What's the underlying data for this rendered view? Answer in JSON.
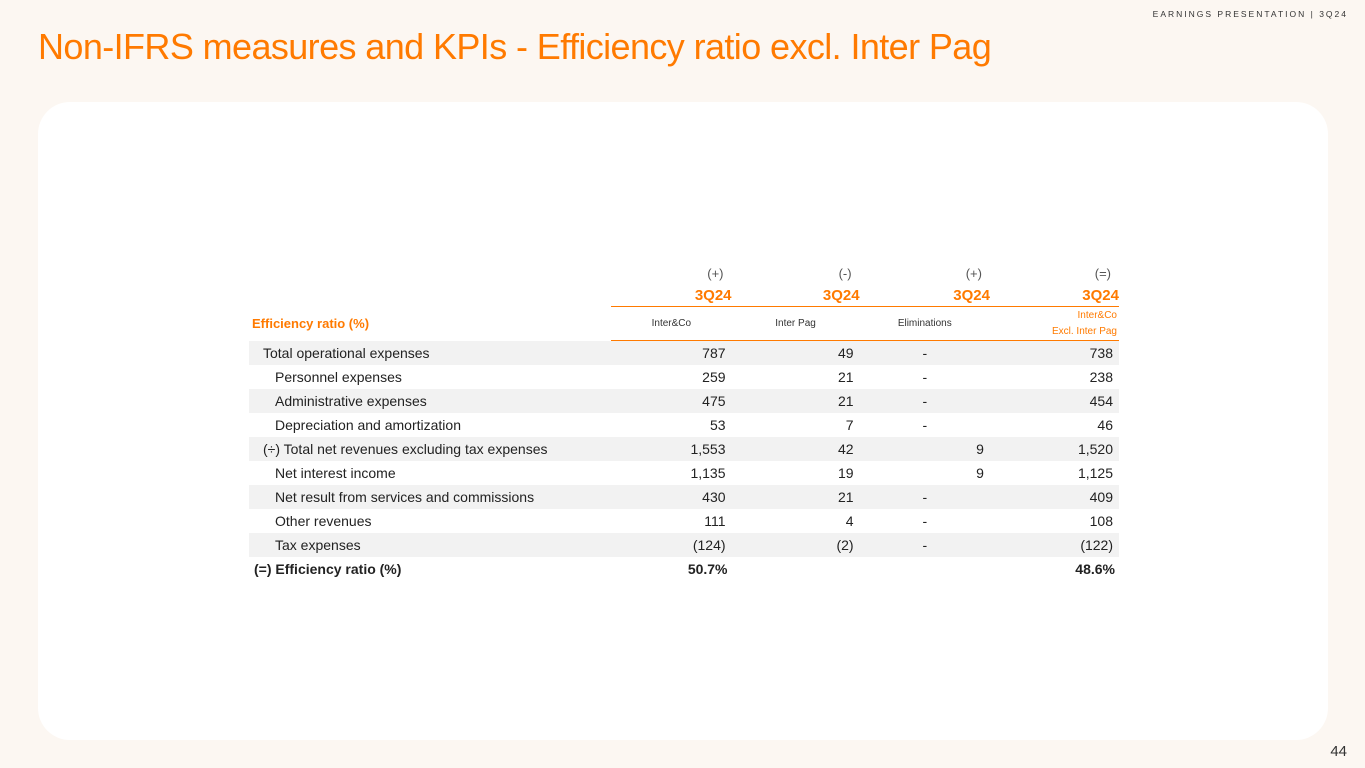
{
  "header": {
    "tag": "EARNINGS PRESENTATION | 3Q24"
  },
  "title": "Non-IFRS measures and KPIs - Efficiency ratio excl. Inter Pag",
  "page_number": "44",
  "colors": {
    "accent": "#ff7a00",
    "background": "#fcf7f2",
    "card": "#ffffff",
    "row_shade": "#f2f2f2"
  },
  "table": {
    "label": "Efficiency ratio (%)",
    "columns": [
      {
        "sign": "(+)",
        "period": "3Q24",
        "entity": "Inter&Co"
      },
      {
        "sign": "(-)",
        "period": "3Q24",
        "entity": "Inter Pag"
      },
      {
        "sign": "(+)",
        "period": "3Q24",
        "entity": "Eliminations"
      },
      {
        "sign": "(=)",
        "period": "3Q24",
        "entity_line1": "Inter&Co",
        "entity_line2": "Excl. Inter Pag"
      }
    ],
    "rows": [
      {
        "label": "Total operational expenses",
        "values": [
          "787",
          "49",
          "-",
          "738"
        ]
      },
      {
        "label": "Personnel expenses",
        "values": [
          "259",
          "21",
          "-",
          "238"
        ]
      },
      {
        "label": "Administrative expenses",
        "values": [
          "475",
          "21",
          "-",
          "454"
        ]
      },
      {
        "label": "Depreciation and amortization",
        "values": [
          "53",
          "7",
          "-",
          "46"
        ]
      },
      {
        "label": "(÷) Total net revenues excluding tax expenses",
        "values": [
          "1,553",
          "42",
          "9",
          "1,520"
        ]
      },
      {
        "label": "Net interest income",
        "values": [
          "1,135",
          "19",
          "9",
          "1,125"
        ]
      },
      {
        "label": "Net result from services and commissions",
        "values": [
          "430",
          "21",
          "-",
          "409"
        ]
      },
      {
        "label": "Other revenues",
        "values": [
          "111",
          "4",
          "-",
          "108"
        ]
      },
      {
        "label": "Tax expenses",
        "values": [
          "(124)",
          "(2)",
          "-",
          "(122)"
        ]
      }
    ],
    "result": {
      "label": "(=) Efficiency ratio (%)",
      "values": [
        "50.7%",
        "",
        "",
        "48.6%"
      ]
    }
  }
}
